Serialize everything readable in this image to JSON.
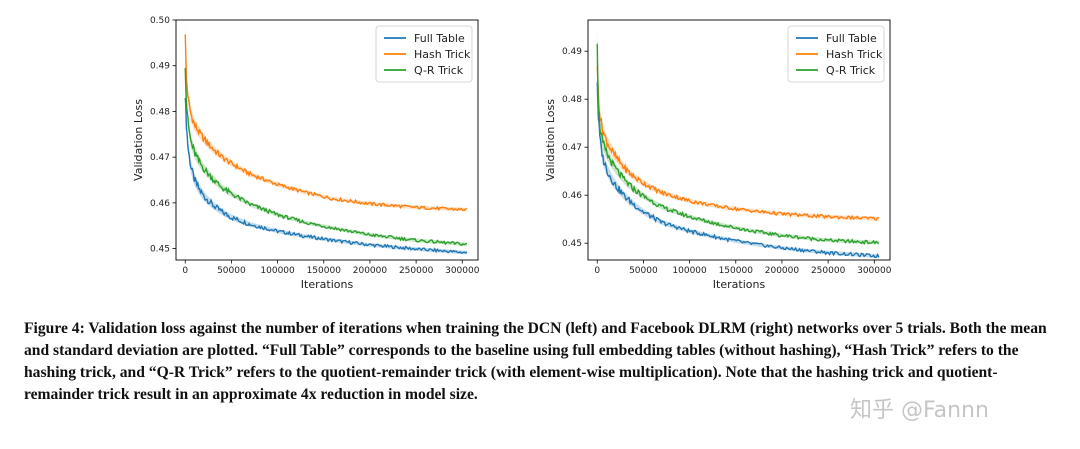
{
  "figure": {
    "caption": "Figure 4: Validation loss against the number of iterations when training the DCN (left) and Facebook DLRM (right) networks over 5 trials. Both the mean and standard deviation are plotted. “Full Table” corresponds to the baseline using full embedding tables (without hashing), “Hash Trick” refers to the hashing trick, and “Q-R Trick” refers to the quotient-remainder trick (with element-wise multiplication). Note that the hashing trick and quotient-remainder trick result in an approximate 4x reduction in model size.",
    "watermark": "知乎 @Fannn"
  },
  "colors": {
    "full_table": "#1f77b4",
    "hash_trick": "#ff7f0e",
    "qr_trick": "#2ca02c"
  },
  "chart_data": [
    {
      "type": "line",
      "xlabel": "Iterations",
      "ylabel": "Validation Loss",
      "xlim": [
        -10000,
        317000
      ],
      "ylim": [
        0.4475,
        0.5
      ],
      "xticks": [
        0,
        50000,
        100000,
        150000,
        200000,
        250000,
        300000
      ],
      "yticks": [
        0.45,
        0.46,
        0.47,
        0.48,
        0.49,
        0.5
      ],
      "ytick_labels": [
        "0.45",
        "0.46",
        "0.47",
        "0.48",
        "0.49",
        "0.50"
      ],
      "legend_position": "top-right",
      "grid": false,
      "series": [
        {
          "name": "Full Table",
          "color": "#1f77b4",
          "x": [
            0,
            1000,
            3000,
            6000,
            10000,
            15000,
            20000,
            30000,
            40000,
            50000,
            70000,
            100000,
            130000,
            160000,
            200000,
            250000,
            305000
          ],
          "y": [
            0.484,
            0.478,
            0.472,
            0.468,
            0.465,
            0.463,
            0.4615,
            0.4595,
            0.458,
            0.4568,
            0.4553,
            0.4538,
            0.4527,
            0.4518,
            0.4508,
            0.4499,
            0.4491
          ]
        },
        {
          "name": "Hash Trick",
          "color": "#ff7f0e",
          "x": [
            0,
            1000,
            3000,
            6000,
            10000,
            15000,
            20000,
            30000,
            40000,
            50000,
            70000,
            100000,
            130000,
            160000,
            200000,
            250000,
            305000
          ],
          "y": [
            0.4975,
            0.488,
            0.483,
            0.4795,
            0.477,
            0.4755,
            0.474,
            0.4718,
            0.47,
            0.4686,
            0.4663,
            0.464,
            0.4623,
            0.4609,
            0.4598,
            0.459,
            0.4585
          ]
        },
        {
          "name": "Q-R Trick",
          "color": "#2ca02c",
          "x": [
            0,
            1000,
            3000,
            6000,
            10000,
            15000,
            20000,
            30000,
            40000,
            50000,
            70000,
            100000,
            130000,
            160000,
            200000,
            250000,
            305000
          ],
          "y": [
            0.4905,
            0.483,
            0.4775,
            0.4735,
            0.471,
            0.469,
            0.4675,
            0.4652,
            0.4633,
            0.462,
            0.4597,
            0.4574,
            0.4557,
            0.4545,
            0.453,
            0.4518,
            0.4509
          ]
        }
      ]
    },
    {
      "type": "line",
      "xlabel": "Iterations",
      "ylabel": "Validation Loss",
      "xlim": [
        -10000,
        317000
      ],
      "ylim": [
        0.4465,
        0.4965
      ],
      "xticks": [
        0,
        50000,
        100000,
        150000,
        200000,
        250000,
        300000
      ],
      "yticks": [
        0.45,
        0.46,
        0.47,
        0.48,
        0.49
      ],
      "ytick_labels": [
        "0.45",
        "0.46",
        "0.47",
        "0.48",
        "0.49"
      ],
      "legend_position": "top-right",
      "grid": false,
      "series": [
        {
          "name": "Full Table",
          "color": "#1f77b4",
          "x": [
            0,
            1000,
            3000,
            6000,
            10000,
            15000,
            20000,
            30000,
            40000,
            50000,
            70000,
            100000,
            130000,
            160000,
            200000,
            250000,
            305000
          ],
          "y": [
            0.484,
            0.477,
            0.4715,
            0.4678,
            0.4655,
            0.4635,
            0.462,
            0.4597,
            0.458,
            0.4565,
            0.4543,
            0.4525,
            0.4512,
            0.4501,
            0.449,
            0.448,
            0.4473
          ]
        },
        {
          "name": "Hash Trick",
          "color": "#ff7f0e",
          "x": [
            0,
            1000,
            3000,
            6000,
            10000,
            15000,
            20000,
            30000,
            40000,
            50000,
            70000,
            100000,
            130000,
            160000,
            200000,
            250000,
            305000
          ],
          "y": [
            0.4875,
            0.481,
            0.4765,
            0.4735,
            0.4713,
            0.4695,
            0.468,
            0.4655,
            0.4638,
            0.4625,
            0.4605,
            0.4588,
            0.4577,
            0.4569,
            0.4561,
            0.4555,
            0.4551
          ]
        },
        {
          "name": "Q-R Trick",
          "color": "#2ca02c",
          "x": [
            0,
            1000,
            3000,
            6000,
            10000,
            15000,
            20000,
            30000,
            40000,
            50000,
            70000,
            100000,
            130000,
            160000,
            200000,
            250000,
            305000
          ],
          "y": [
            0.4925,
            0.479,
            0.474,
            0.4708,
            0.4688,
            0.467,
            0.4655,
            0.463,
            0.4612,
            0.4598,
            0.4575,
            0.4555,
            0.454,
            0.4528,
            0.4516,
            0.4506,
            0.4501
          ]
        }
      ]
    }
  ]
}
